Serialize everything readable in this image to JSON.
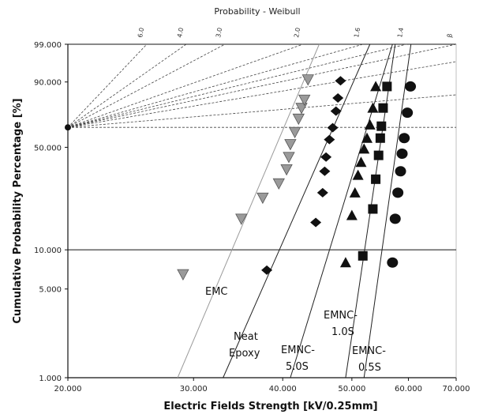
{
  "chart_data": {
    "type": "scatter",
    "title": "Probability - Weibull",
    "xlabel": "Electric Fields Strength [kV/0.25mm]",
    "ylabel": "Cumulative Probability Percentage [%]",
    "xscale": "log",
    "yscale": "weibull",
    "xlim": [
      20,
      70
    ],
    "ylim": [
      1,
      99
    ],
    "x_ticks": [
      "20.000",
      "30.000",
      "40.000",
      "50.000",
      "60.000",
      "70.000"
    ],
    "y_ticks": [
      "1.000",
      "5.000",
      "10.000",
      "50.000",
      "90.000",
      "99.000"
    ],
    "grid": false,
    "legend": "none",
    "shape_scale": {
      "labels": [
        "6.0",
        "4.0",
        "3.0",
        "2.0",
        "1.6",
        "1.4",
        "β"
      ],
      "values": [
        6.0,
        4.0,
        3.0,
        2.0,
        1.6,
        1.4,
        1.0
      ]
    },
    "series": [
      {
        "name": "EMC",
        "marker": "triangle-down",
        "color": "#9a9a9a",
        "x": [
          29.0,
          35.0,
          37.5,
          39.5,
          40.5,
          40.8,
          41.0,
          41.6,
          42.1,
          42.5,
          42.9,
          43.4
        ],
        "y": [
          6.5,
          17.0,
          24.0,
          30.0,
          37.0,
          44.0,
          52.0,
          60.0,
          69.0,
          76.0,
          81.0,
          91.0
        ],
        "fit_line": [
          [
            28.5,
            1.0
          ],
          [
            45.0,
            99.0
          ]
        ]
      },
      {
        "name": "Neat Epoxy",
        "marker": "diamond",
        "color": "#111111",
        "x": [
          38.0,
          44.5,
          45.5,
          45.8,
          46.0,
          46.5,
          47.0,
          47.5,
          47.8,
          48.2
        ],
        "y": [
          7.0,
          16.0,
          26.0,
          36.0,
          44.0,
          55.0,
          63.0,
          74.0,
          82.0,
          90.5
        ],
        "fit_line": [
          [
            33.0,
            1.0
          ],
          [
            53.0,
            99.0
          ]
        ]
      },
      {
        "name": "EMNC-5.0S",
        "marker": "triangle-up",
        "color": "#111111",
        "x": [
          49.0,
          50.0,
          50.5,
          51.0,
          51.5,
          52.0,
          52.5,
          53.0,
          53.5,
          54.0
        ],
        "y": [
          8.0,
          18.0,
          26.0,
          34.0,
          41.0,
          49.0,
          56.0,
          65.0,
          76.0,
          88.0
        ],
        "fit_line": [
          [
            41.0,
            1.0
          ],
          [
            57.0,
            99.0
          ]
        ]
      },
      {
        "name": "EMNC-1.0S",
        "marker": "square",
        "color": "#111111",
        "x": [
          51.8,
          53.5,
          54.0,
          54.5,
          54.8,
          55.0,
          55.3,
          56.0
        ],
        "y": [
          9.0,
          20.0,
          32.0,
          45.0,
          56.0,
          64.0,
          76.0,
          88.0
        ],
        "fit_line": [
          [
            49.0,
            1.0
          ],
          [
            57.5,
            99.0
          ]
        ]
      },
      {
        "name": "EMNC-0.5S",
        "marker": "circle",
        "color": "#111111",
        "x": [
          57.0,
          57.5,
          58.0,
          58.5,
          58.8,
          59.2,
          59.8,
          60.4
        ],
        "y": [
          8.0,
          17.0,
          26.0,
          36.0,
          46.0,
          56.0,
          73.0,
          88.0
        ],
        "fit_line": [
          [
            52.0,
            1.0
          ],
          [
            60.5,
            99.0
          ]
        ]
      }
    ]
  }
}
